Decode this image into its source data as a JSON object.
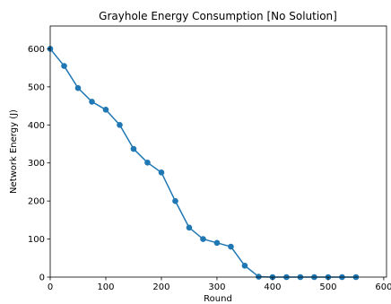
{
  "chart_data": {
    "type": "line",
    "title": "Grayhole Energy Consumption [No Solution]",
    "xlabel": "Round",
    "ylabel": "Network Energy (J)",
    "x": [
      0,
      25,
      50,
      75,
      100,
      125,
      150,
      175,
      200,
      225,
      250,
      275,
      300,
      325,
      350,
      375,
      400,
      425,
      450,
      475,
      500,
      525,
      550
    ],
    "series": [
      {
        "values": [
          600,
          555,
          497,
          461,
          440,
          400,
          337,
          301,
          275,
          200,
          130,
          100,
          90,
          80,
          30,
          1,
          0,
          0,
          0,
          0,
          0,
          0,
          0
        ],
        "color": "#1f77b4",
        "marker": "circle"
      }
    ],
    "xlim": [
      0,
      605
    ],
    "ylim": [
      0,
      660
    ],
    "xticks": [
      0,
      100,
      200,
      300,
      400,
      500,
      600
    ],
    "yticks": [
      0,
      100,
      200,
      300,
      400,
      500,
      600
    ],
    "grid": false,
    "legend": "none"
  }
}
